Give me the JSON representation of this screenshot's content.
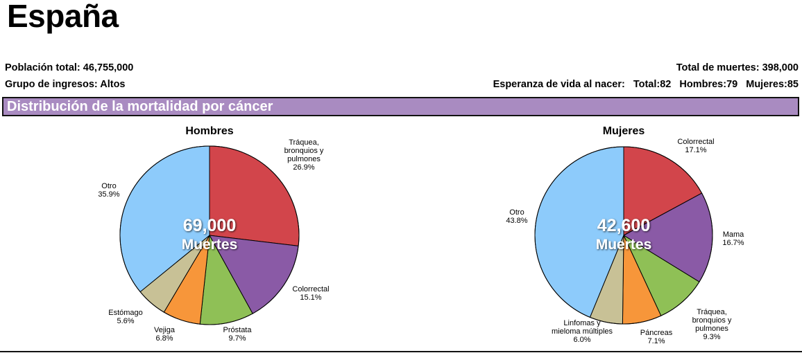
{
  "page": {
    "country": "España",
    "population_label": "Población total:",
    "population_value": "46,755,000",
    "income_label": "Grupo de ingresos:",
    "income_value": "Altos",
    "deaths_label": "Total de muertes:",
    "deaths_value": "398,000",
    "life_label": "Esperanza de vida al nacer:",
    "life_total": "Total:82",
    "life_men": "Hombres:79",
    "life_women": "Mujeres:85",
    "section_title": "Distribución de la mortalidad por cáncer"
  },
  "colors": {
    "banner": "#A98BC1",
    "red": "#D2454B",
    "purple": "#8A5AA6",
    "green": "#8FC056",
    "orange": "#F7963A",
    "khaki": "#C8C196",
    "lightblue": "#8DCBFB"
  },
  "chart_data": [
    {
      "type": "pie",
      "title": "Hombres",
      "center_value": "69,000",
      "center_label": "Muertes",
      "slices": [
        {
          "label": "Tráquea, bronquios y pulmones",
          "label_lines": [
            "Tráquea,",
            "bronquios y",
            "pulmones"
          ],
          "value": 26.9,
          "value_text": "26.9%",
          "color": "#D2454B"
        },
        {
          "label": "Colorrectal",
          "label_lines": [
            "Colorrectal"
          ],
          "value": 15.1,
          "value_text": "15.1%",
          "color": "#8A5AA6"
        },
        {
          "label": "Próstata",
          "label_lines": [
            "Próstata"
          ],
          "value": 9.7,
          "value_text": "9.7%",
          "color": "#8FC056"
        },
        {
          "label": "Vejiga",
          "label_lines": [
            "Vejiga"
          ],
          "value": 6.8,
          "value_text": "6.8%",
          "color": "#F7963A"
        },
        {
          "label": "Estómago",
          "label_lines": [
            "Estómago"
          ],
          "value": 5.6,
          "value_text": "5.6%",
          "color": "#C8C196"
        },
        {
          "label": "Otro",
          "label_lines": [
            "Otro"
          ],
          "value": 35.9,
          "value_text": "35.9%",
          "color": "#8DCBFB"
        }
      ]
    },
    {
      "type": "pie",
      "title": "Mujeres",
      "center_value": "42,600",
      "center_label": "Muertes",
      "slices": [
        {
          "label": "Colorrectal",
          "label_lines": [
            "Colorrectal"
          ],
          "value": 17.1,
          "value_text": "17.1%",
          "color": "#D2454B"
        },
        {
          "label": "Mama",
          "label_lines": [
            "Mama"
          ],
          "value": 16.7,
          "value_text": "16.7%",
          "color": "#8A5AA6"
        },
        {
          "label": "Tráquea, bronquios y pulmones",
          "label_lines": [
            "Tráquea,",
            "bronquios y",
            "pulmones"
          ],
          "value": 9.3,
          "value_text": "9.3%",
          "color": "#8FC056"
        },
        {
          "label": "Páncreas",
          "label_lines": [
            "Páncreas"
          ],
          "value": 7.1,
          "value_text": "7.1%",
          "color": "#F7963A"
        },
        {
          "label": "Linfomas y mieloma múltiples",
          "label_lines": [
            "Linfomas y",
            "mieloma múltiples"
          ],
          "value": 6.0,
          "value_text": "6.0%",
          "color": "#C8C196"
        },
        {
          "label": "Otro",
          "label_lines": [
            "Otro"
          ],
          "value": 43.8,
          "value_text": "43.8%",
          "color": "#8DCBFB"
        }
      ]
    }
  ]
}
